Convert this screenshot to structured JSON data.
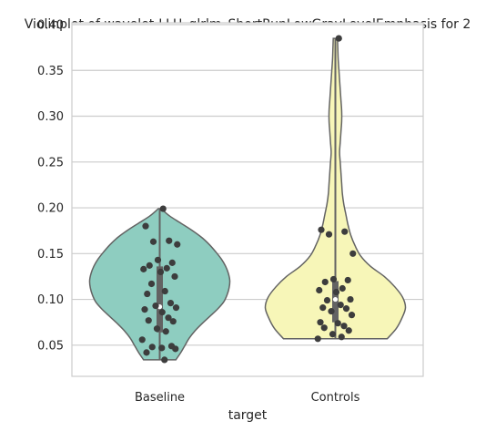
{
  "chart_data": {
    "type": "violin",
    "title": "Violinplot of wavelet-LLH_glrlm_ShortRunLowGrayLevelEmphasis for 2",
    "xlabel": "target",
    "ylabel": "",
    "ylim": [
      0.016,
      0.402
    ],
    "yticks": [
      "0.05",
      "0.10",
      "0.15",
      "0.20",
      "0.25",
      "0.30",
      "0.35",
      "0.40"
    ],
    "ytick_values": [
      0.05,
      0.1,
      0.15,
      0.2,
      0.25,
      0.3,
      0.35,
      0.4
    ],
    "grid": true,
    "categories": [
      "Baseline",
      "Controls"
    ],
    "series": [
      {
        "category": "Baseline",
        "color": "#8ecdc0",
        "min": 0.034,
        "max": 0.199,
        "q1": 0.064,
        "median": 0.092,
        "q3": 0.136,
        "points": [
          0.199,
          0.18,
          0.164,
          0.163,
          0.16,
          0.143,
          0.14,
          0.137,
          0.134,
          0.133,
          0.13,
          0.125,
          0.117,
          0.109,
          0.106,
          0.096,
          0.093,
          0.091,
          0.089,
          0.086,
          0.08,
          0.077,
          0.076,
          0.068,
          0.065,
          0.056,
          0.049,
          0.048,
          0.047,
          0.046,
          0.042,
          0.034
        ],
        "density_widths": [
          0.23,
          0.3,
          0.36,
          0.42,
          0.5,
          0.6,
          0.71,
          0.82,
          0.91,
          0.96,
          0.99,
          1.0,
          0.98,
          0.94,
          0.88,
          0.8,
          0.71,
          0.6,
          0.46,
          0.3,
          0.14,
          0.02
        ]
      },
      {
        "category": "Controls",
        "color": "#f7f6b8",
        "min": 0.057,
        "max": 0.385,
        "q1": 0.075,
        "median": 0.1,
        "q3": 0.12,
        "points": [
          0.385,
          0.176,
          0.174,
          0.171,
          0.15,
          0.122,
          0.121,
          0.119,
          0.112,
          0.11,
          0.108,
          0.1,
          0.099,
          0.094,
          0.091,
          0.09,
          0.087,
          0.083,
          0.075,
          0.074,
          0.071,
          0.069,
          0.066,
          0.062,
          0.059,
          0.057
        ],
        "density_widths": [
          0.74,
          0.87,
          0.95,
          1.0,
          0.96,
          0.85,
          0.7,
          0.5,
          0.36,
          0.28,
          0.22,
          0.18,
          0.15,
          0.12,
          0.1,
          0.09,
          0.08,
          0.07,
          0.06,
          0.07,
          0.08,
          0.09,
          0.09,
          0.08,
          0.07,
          0.06,
          0.05,
          0.04,
          0.035,
          0.03
        ]
      }
    ]
  }
}
